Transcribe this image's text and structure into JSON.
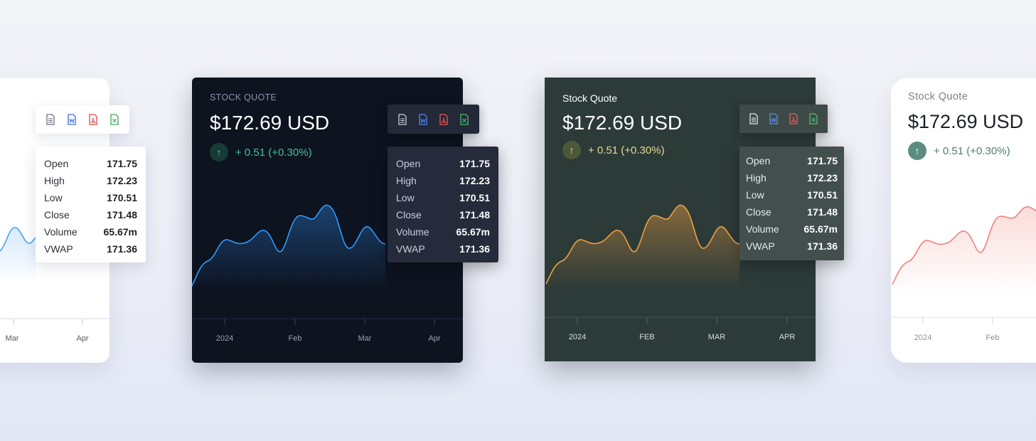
{
  "cards": {
    "dark_navy": {
      "label": "STOCK QUOTE",
      "price": "$172.69 USD",
      "change": "+ 0.51 (+0.30%)",
      "ticks": [
        "2024",
        "Feb",
        "Mar",
        "Apr"
      ],
      "accent": "#2f9bff"
    },
    "dark_green": {
      "label": "Stock Quote",
      "price": "$172.69 USD",
      "change": "+ 0.51 (+0.30%)",
      "ticks": [
        "2024",
        "FEB",
        "MAR",
        "APR"
      ],
      "accent": "#f0a040"
    },
    "light_left": {
      "ticks": [
        "Mar",
        "Apr"
      ],
      "accent": "#4aa3ef"
    },
    "light_right": {
      "label": "Stock Quote",
      "price": "$172.69 USD",
      "change": "+ 0.51 (+0.30%)",
      "ticks": [
        "2024",
        "Feb"
      ],
      "accent": "#f08278"
    }
  },
  "stats": [
    {
      "label": "Open",
      "value": "171.75"
    },
    {
      "label": "High",
      "value": "172.23"
    },
    {
      "label": "Low",
      "value": "170.51"
    },
    {
      "label": "Close",
      "value": "171.48"
    },
    {
      "label": "Volume",
      "value": "65.67m"
    },
    {
      "label": "VWAP",
      "value": "171.36"
    }
  ],
  "export_icons": [
    {
      "name": "document-icon",
      "color": "#6b7080"
    },
    {
      "name": "word-icon",
      "color": "#3d6fd8"
    },
    {
      "name": "pdf-icon",
      "color": "#e04848"
    },
    {
      "name": "excel-icon",
      "color": "#3aa655"
    }
  ],
  "arrow_glyph": "↑"
}
